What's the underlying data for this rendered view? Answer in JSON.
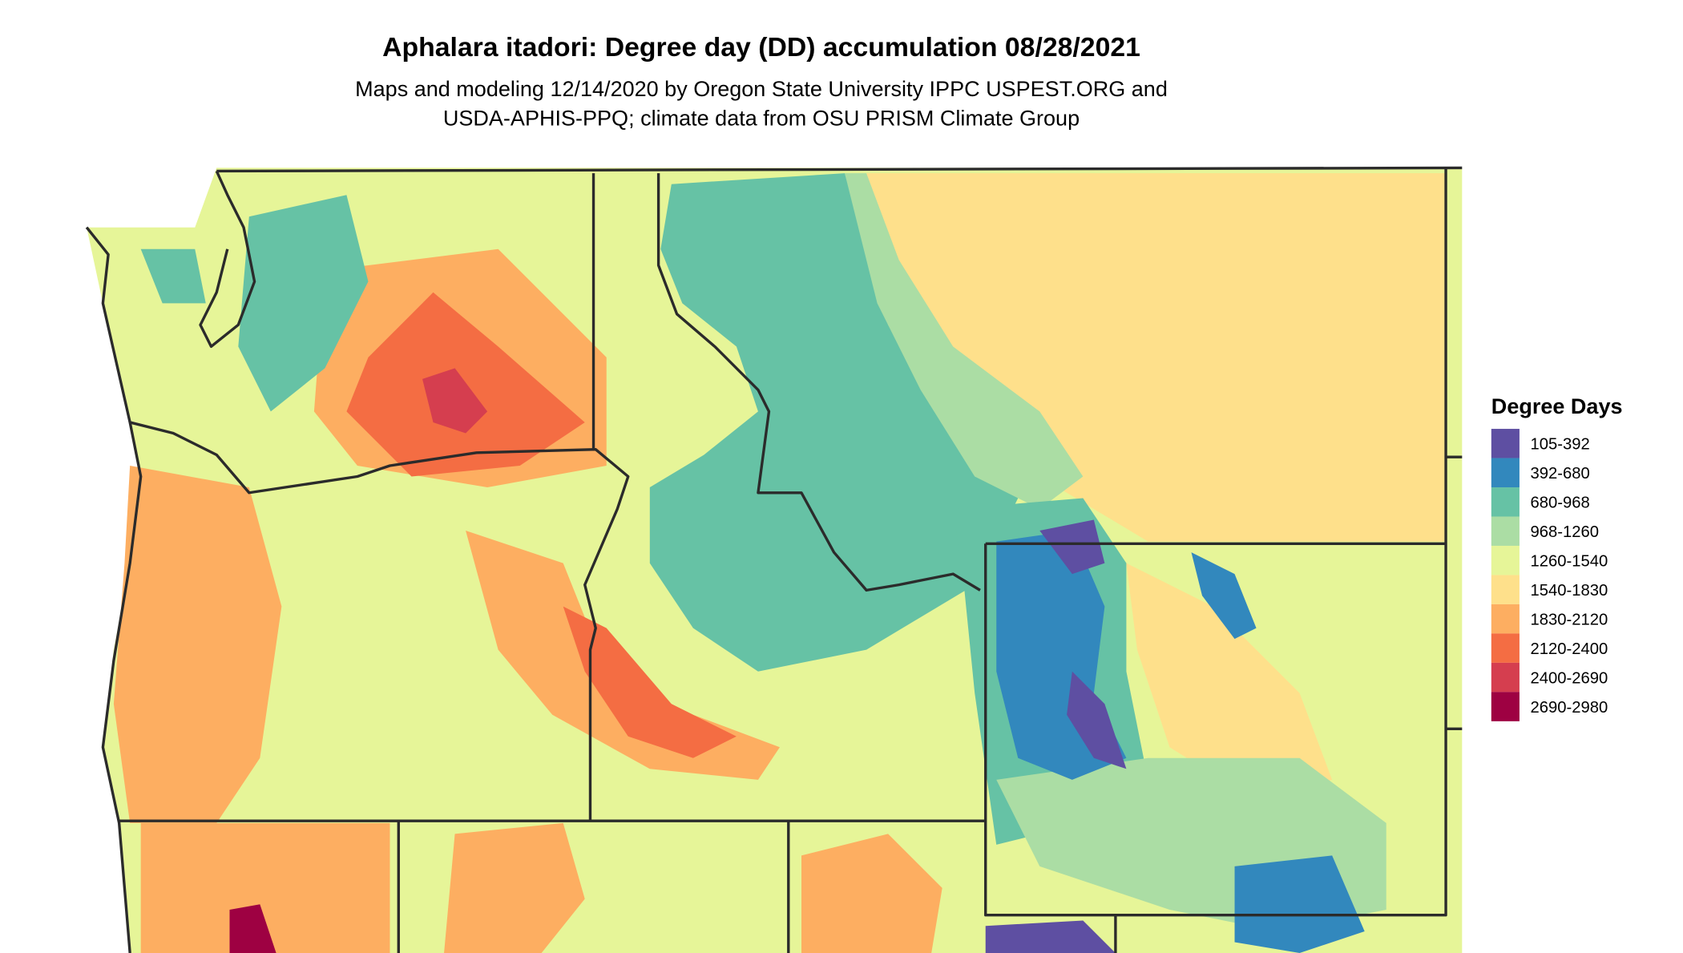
{
  "title": "Aphalara itadori: Degree day (DD) accumulation 08/28/2021",
  "subtitle": [
    "Maps and modeling 12/14/2020 by Oregon State University IPPC USPEST.ORG and",
    "USDA-APHIS-PPQ; climate data from OSU PRISM Climate Group"
  ],
  "legend": {
    "title": "Degree Days",
    "items": [
      {
        "label": "105-392",
        "color": "#5e4fa2"
      },
      {
        "label": "392-680",
        "color": "#3288bd"
      },
      {
        "label": "680-968",
        "color": "#66c2a5"
      },
      {
        "label": "968-1260",
        "color": "#abdda4"
      },
      {
        "label": "1260-1540",
        "color": "#e6f598"
      },
      {
        "label": "1540-1830",
        "color": "#fee08b"
      },
      {
        "label": "1830-2120",
        "color": "#fdae61"
      },
      {
        "label": "2120-2400",
        "color": "#f46d43"
      },
      {
        "label": "2400-2690",
        "color": "#d53e4f"
      },
      {
        "label": "2690-2980",
        "color": "#9e0142"
      }
    ]
  }
}
